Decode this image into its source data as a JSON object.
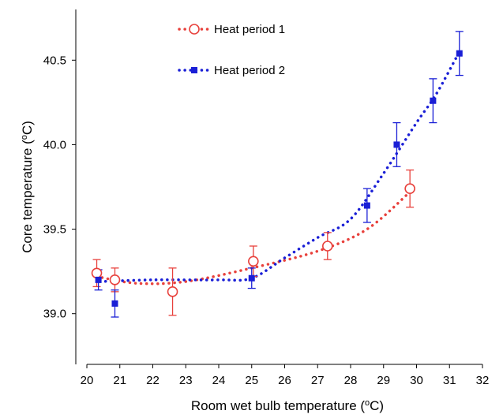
{
  "chart_data": {
    "type": "scatter",
    "xlabel": "Room wet bulb temperature (",
    "xlabel_sup": "o",
    "xlabel_unit": "C)",
    "ylabel": "Core temperature (",
    "ylabel_sup": "o",
    "ylabel_unit": "C)",
    "xlim": [
      20,
      32
    ],
    "ylim": [
      38.7,
      40.8
    ],
    "x_ticks": [
      "20",
      "21",
      "22",
      "23",
      "24",
      "25",
      "26",
      "27",
      "28",
      "29",
      "30",
      "31",
      "32"
    ],
    "y_ticks": [
      "39.0",
      "39.5",
      "40.0",
      "40.5"
    ],
    "legend_position": "top-center",
    "series": [
      {
        "name": "Heat period 1",
        "color": "#e8413c",
        "marker": "open-circle",
        "trend": "dotted-curve",
        "x": [
          20.3,
          20.85,
          22.6,
          25.05,
          27.3,
          29.8
        ],
        "y": [
          39.24,
          39.2,
          39.13,
          39.31,
          39.4,
          39.74
        ],
        "err": [
          0.08,
          0.07,
          0.14,
          0.09,
          0.08,
          0.11
        ]
      },
      {
        "name": "Heat period 2",
        "color": "#1a1fd6",
        "marker": "filled-square",
        "trend": "dotted-curve",
        "x": [
          20.35,
          20.85,
          25.0,
          28.5,
          29.4,
          30.5,
          31.3
        ],
        "y": [
          39.2,
          39.06,
          39.21,
          39.64,
          40.0,
          40.26,
          40.54
        ],
        "err": [
          0.06,
          0.08,
          0.06,
          0.1,
          0.13,
          0.13,
          0.13
        ]
      }
    ]
  }
}
